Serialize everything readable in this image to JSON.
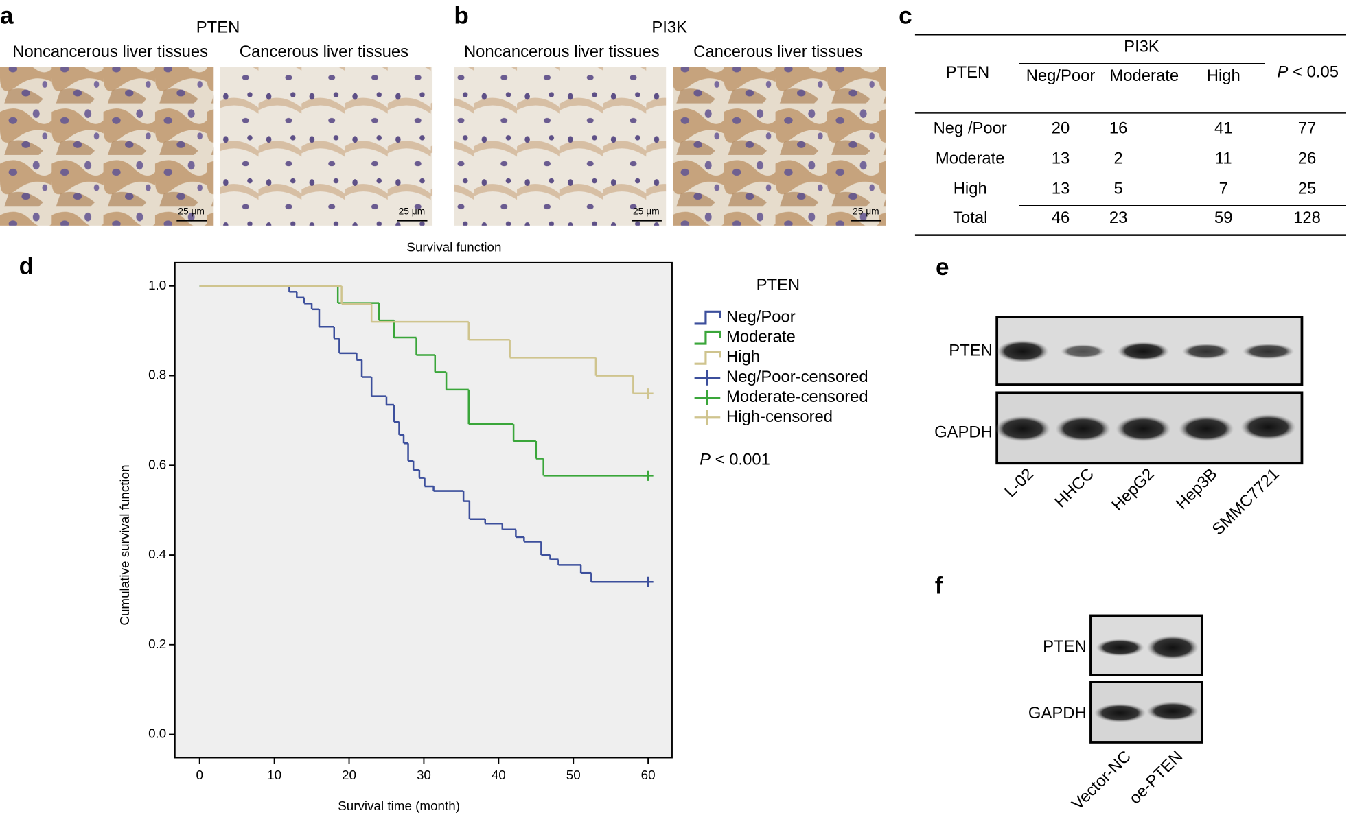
{
  "panel_a": {
    "label": "a",
    "title": "PTEN",
    "captions": [
      "Noncancerous liver tissues",
      "Cancerous liver tissues"
    ],
    "scale_bars": [
      "25 μm",
      "25 μm"
    ]
  },
  "panel_b": {
    "label": "b",
    "title": "PI3K",
    "captions": [
      "Noncancerous liver tissues",
      "Cancerous liver tissues"
    ],
    "scale_bars": [
      "25 μm",
      "25 μm"
    ]
  },
  "panel_c": {
    "label": "c",
    "row_header": "PTEN",
    "column_group": "PI3K",
    "columns": [
      "Neg/Poor",
      "Moderate",
      "High"
    ],
    "p_symbol": "P",
    "p_text": "< 0.05",
    "rows": [
      [
        "Neg /Poor",
        20,
        16,
        41,
        77
      ],
      [
        "Moderate",
        13,
        2,
        11,
        26
      ],
      [
        "High",
        13,
        5,
        7,
        25
      ],
      [
        "Total",
        46,
        23,
        59,
        128
      ]
    ]
  },
  "chart_data": {
    "type": "step",
    "panel_label": "d",
    "title": "Survival function",
    "x_label": "Survival time (month)",
    "y_label": "Cumulative survival function",
    "legend_title": "PTEN",
    "annotation_symbol": "P",
    "annotation": "< 0.001",
    "xlim": [
      -3.3,
      63.2
    ],
    "ylim": [
      -0.052,
      1.052
    ],
    "xticks": [
      0,
      10,
      20,
      30,
      40,
      50,
      60
    ],
    "yticks": [
      {
        "value": 0,
        "label": "0.0"
      },
      0.2,
      0.4,
      0.6,
      0.8,
      {
        "value": 1,
        "label": "1.0"
      }
    ],
    "series": [
      {
        "name": "Neg/Poor",
        "color": "#3c4f9c",
        "style": "step",
        "x": [
          0,
          12,
          13,
          14,
          15,
          16,
          18,
          18.7,
          21,
          21.7,
          23,
          25,
          26,
          26.7,
          27.3,
          27.9,
          28.6,
          29.4,
          30.1,
          31.3,
          35.3,
          36.1,
          38.2,
          40.5,
          42.3,
          43.4,
          45.7,
          46.9,
          48,
          51,
          52.4,
          60
        ],
        "values": [
          1,
          0.987,
          0.974,
          0.961,
          0.948,
          0.909,
          0.883,
          0.85,
          0.835,
          0.797,
          0.754,
          0.735,
          0.697,
          0.668,
          0.649,
          0.61,
          0.59,
          0.572,
          0.553,
          0.543,
          0.52,
          0.48,
          0.47,
          0.457,
          0.44,
          0.43,
          0.4,
          0.39,
          0.378,
          0.36,
          0.34,
          0.34
        ]
      },
      {
        "name": "Moderate",
        "color": "#3aa63a",
        "style": "step",
        "x": [
          0,
          18.5,
          24,
          26,
          29,
          31.5,
          33,
          36,
          42,
          45,
          46,
          60
        ],
        "values": [
          1,
          0.962,
          0.923,
          0.885,
          0.846,
          0.808,
          0.769,
          0.692,
          0.654,
          0.615,
          0.577,
          0.577
        ]
      },
      {
        "name": "High",
        "color": "#cfc48e",
        "style": "step",
        "x": [
          0,
          19,
          23,
          36,
          41.5,
          53,
          58,
          60
        ],
        "values": [
          1,
          0.96,
          0.92,
          0.88,
          0.84,
          0.8,
          0.76,
          0.76
        ]
      },
      {
        "name": "Neg/Poor-censored",
        "color": "#3c4f9c",
        "style": "censored",
        "x": [
          60
        ],
        "values": [
          0.34
        ]
      },
      {
        "name": "Moderate-censored",
        "color": "#3aa63a",
        "style": "censored",
        "x": [
          60
        ],
        "values": [
          0.577
        ]
      },
      {
        "name": "High-censored",
        "color": "#cfc48e",
        "style": "censored",
        "x": [
          60
        ],
        "values": [
          0.76
        ]
      }
    ]
  },
  "panel_e": {
    "label": "e",
    "rows": [
      "PTEN",
      "GAPDH"
    ],
    "lanes": [
      "L-02",
      "HHCC",
      "HepG2",
      "Hep3B",
      "SMMC7721"
    ]
  },
  "panel_f": {
    "label": "f",
    "rows": [
      "PTEN",
      "GAPDH"
    ],
    "lanes": [
      "Vector-NC",
      "oe-PTEN"
    ]
  }
}
